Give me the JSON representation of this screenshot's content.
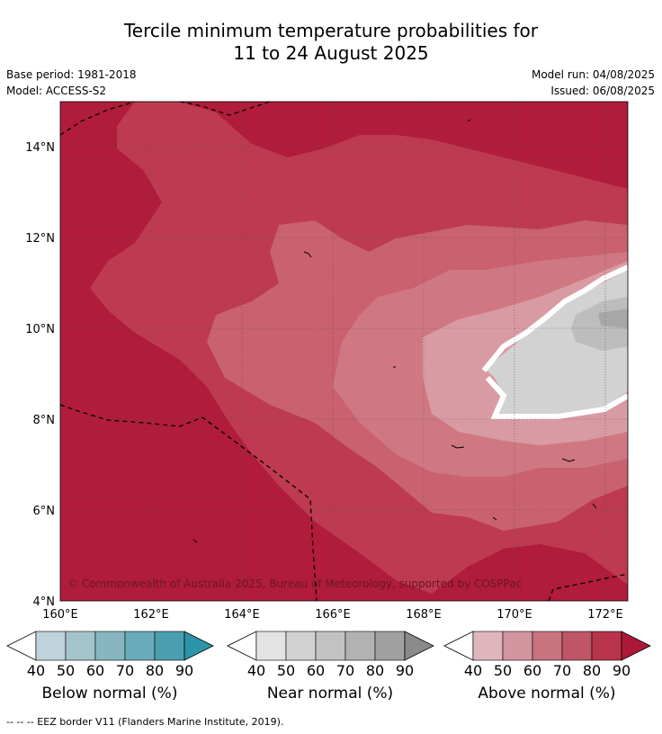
{
  "title_line1": "Tercile minimum temperature probabilities for",
  "title_line2": "11 to 24 August 2025",
  "base_period": "Base period: 1981-2018",
  "model": "Model: ACCESS-S2",
  "model_run": "Model run: 04/08/2025",
  "issued": "Issued: 06/08/2025",
  "copyright": "© Commonwealth of Australia 2025, Bureau of Meteorology, supported by COSPPac",
  "lat_ticks": [
    "14°N",
    "12°N",
    "10°N",
    "8°N",
    "6°N",
    "4°N"
  ],
  "lon_ticks": [
    "160°E",
    "162°E",
    "164°E",
    "166°E",
    "168°E",
    "170°E",
    "172°E"
  ],
  "colorbars": [
    {
      "name": "Below normal (%)",
      "ticks": [
        "40",
        "50",
        "60",
        "70",
        "80",
        "90"
      ],
      "colors": [
        "#ffffff",
        "#bfd3da",
        "#a3c4cb",
        "#87b6c1",
        "#6aabbb",
        "#4a9eb0",
        "#2b94a8"
      ]
    },
    {
      "name": "Near normal (%)",
      "ticks": [
        "40",
        "50",
        "60",
        "70",
        "80",
        "90"
      ],
      "colors": [
        "#ffffff",
        "#e3e3e3",
        "#d2d2d2",
        "#c2c2c2",
        "#b2b2b2",
        "#a0a0a0",
        "#8a8a8a"
      ]
    },
    {
      "name": "Above normal (%)",
      "ticks": [
        "40",
        "50",
        "60",
        "70",
        "80",
        "90"
      ],
      "colors": [
        "#ffffff",
        "#e0b6bd",
        "#d3959f",
        "#c9737f",
        "#bf5666",
        "#b8344a",
        "#ad1837"
      ]
    }
  ],
  "footer": "--  --  -- EEZ border V11 (Flanders Marine Institute, 2019).",
  "map_colors": {
    "above_90": "#b01c3a",
    "above_80": "#bd3a50",
    "above_70": "#c9616f",
    "above_60": "#d07882",
    "above_50": "#d99ba3",
    "near_50": "#d2d2d2",
    "near_60": "#bdbdbd",
    "near_70": "#a8a8a8"
  }
}
